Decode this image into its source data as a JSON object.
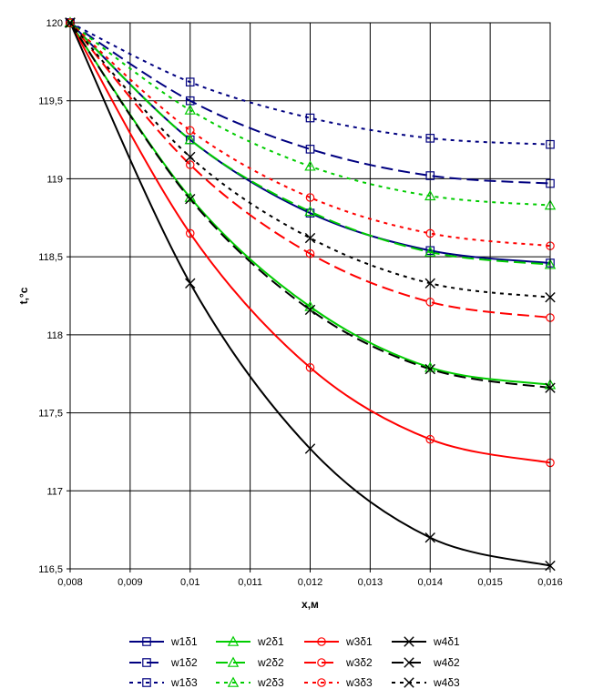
{
  "chart_data": {
    "type": "line",
    "xlabel": "x,м",
    "ylabel": "t,°c",
    "xlim": [
      0.008,
      0.016
    ],
    "ylim": [
      116.5,
      120
    ],
    "x_ticks": [
      "0,008",
      "0,009",
      "0,01",
      "0,011",
      "0,012",
      "0,013",
      "0,014",
      "0,015",
      "0,016"
    ],
    "y_ticks": [
      "116,5",
      "117",
      "117,5",
      "118",
      "118,5",
      "119",
      "119,5",
      "120"
    ],
    "grid": true,
    "legend_position": "bottom",
    "marker_x": [
      0.008,
      0.01,
      0.012,
      0.014,
      0.016
    ],
    "series": [
      {
        "name": "w1δ1",
        "color": "#000080",
        "dash": "solid",
        "marker": "square",
        "x": [
          0.008,
          0.01,
          0.012,
          0.014,
          0.016
        ],
        "y": [
          120,
          119.25,
          118.78,
          118.54,
          118.46
        ]
      },
      {
        "name": "w1δ2",
        "color": "#000080",
        "dash": "dashed",
        "marker": "square",
        "x": [
          0.008,
          0.01,
          0.012,
          0.014,
          0.016
        ],
        "y": [
          120,
          119.5,
          119.19,
          119.02,
          118.97
        ]
      },
      {
        "name": "w1δ3",
        "color": "#000080",
        "dash": "dotted",
        "marker": "square",
        "x": [
          0.008,
          0.01,
          0.012,
          0.014,
          0.016
        ],
        "y": [
          120,
          119.62,
          119.39,
          119.26,
          119.22
        ]
      },
      {
        "name": "w2δ1",
        "color": "#00cc00",
        "dash": "solid",
        "marker": "triangle",
        "x": [
          0.008,
          0.01,
          0.012,
          0.014,
          0.016
        ],
        "y": [
          120,
          118.88,
          118.18,
          117.79,
          117.68
        ]
      },
      {
        "name": "w2δ2",
        "color": "#00cc00",
        "dash": "dashed",
        "marker": "triangle",
        "x": [
          0.008,
          0.01,
          0.012,
          0.014,
          0.016
        ],
        "y": [
          120,
          119.25,
          118.79,
          118.53,
          118.45
        ]
      },
      {
        "name": "w2δ3",
        "color": "#00cc00",
        "dash": "dotted",
        "marker": "triangle",
        "x": [
          0.008,
          0.01,
          0.012,
          0.014,
          0.016
        ],
        "y": [
          120,
          119.44,
          119.08,
          118.89,
          118.83
        ]
      },
      {
        "name": "w3δ1",
        "color": "#ff0000",
        "dash": "solid",
        "marker": "circle",
        "x": [
          0.008,
          0.01,
          0.012,
          0.014,
          0.016
        ],
        "y": [
          120,
          118.65,
          117.79,
          117.33,
          117.18
        ]
      },
      {
        "name": "w3δ2",
        "color": "#ff0000",
        "dash": "dashed",
        "marker": "circle",
        "x": [
          0.008,
          0.01,
          0.012,
          0.014,
          0.016
        ],
        "y": [
          120,
          119.09,
          118.52,
          118.21,
          118.11
        ]
      },
      {
        "name": "w3δ3",
        "color": "#ff0000",
        "dash": "dotted",
        "marker": "circle",
        "x": [
          0.008,
          0.01,
          0.012,
          0.014,
          0.016
        ],
        "y": [
          120,
          119.31,
          118.88,
          118.65,
          118.57
        ]
      },
      {
        "name": "w4δ1",
        "color": "#000000",
        "dash": "solid",
        "marker": "x",
        "x": [
          0.008,
          0.01,
          0.012,
          0.014,
          0.016
        ],
        "y": [
          120,
          118.33,
          117.27,
          116.7,
          116.52
        ]
      },
      {
        "name": "w4δ2",
        "color": "#000000",
        "dash": "dashed",
        "marker": "x",
        "x": [
          0.008,
          0.01,
          0.012,
          0.014,
          0.016
        ],
        "y": [
          120,
          118.87,
          118.16,
          117.78,
          117.66
        ]
      },
      {
        "name": "w4δ3",
        "color": "#000000",
        "dash": "dotted",
        "marker": "x",
        "x": [
          0.008,
          0.01,
          0.012,
          0.014,
          0.016
        ],
        "y": [
          120,
          119.14,
          118.62,
          118.33,
          118.24
        ]
      }
    ]
  }
}
